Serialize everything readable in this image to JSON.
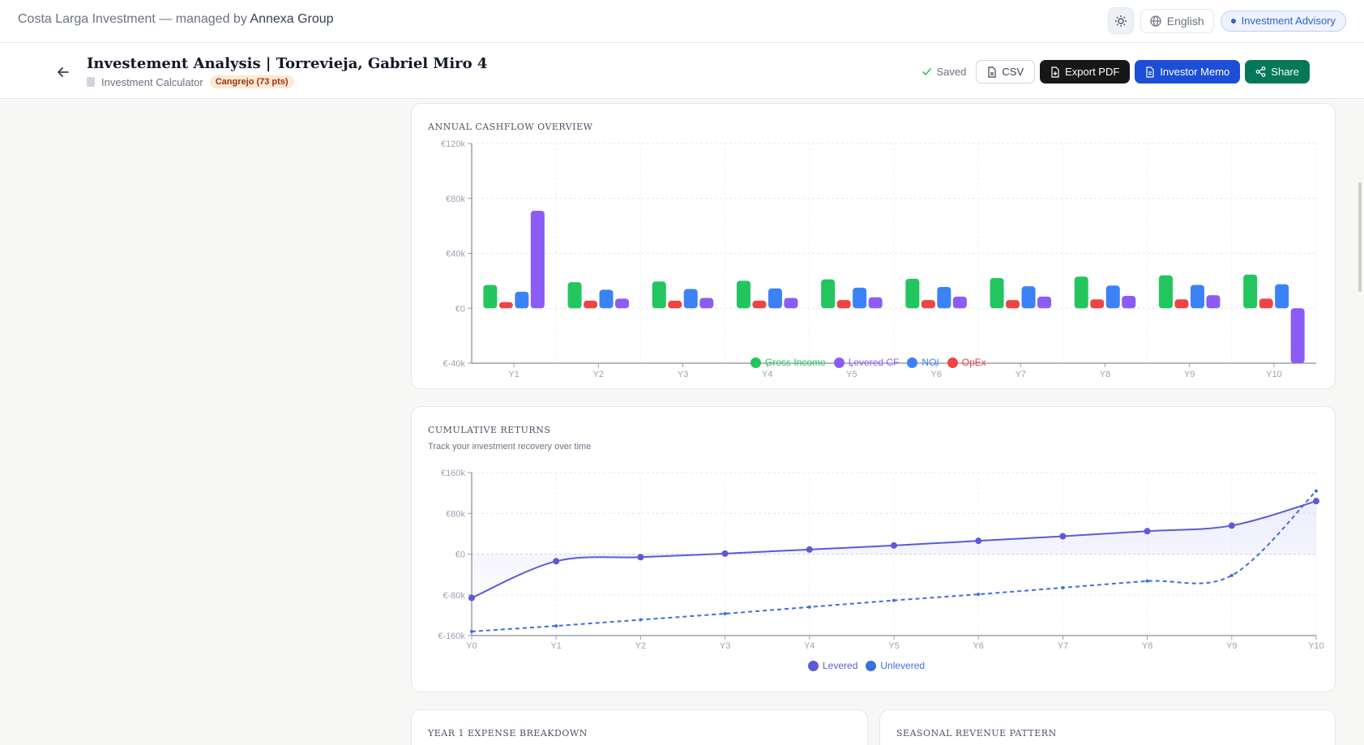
{
  "topbar": {
    "brand_prefix": "Costa Larga Investment — managed by",
    "brand_strong": "Annexa Group",
    "language": "English",
    "advisory": "Investment Advisory"
  },
  "header": {
    "title": "Investement Analysis | Torrevieja, Gabriel Miro 4",
    "subtitle": "Investment Calculator",
    "badge": "Cangrejo (73 pts)",
    "saved": "Saved",
    "csv": "CSV",
    "export_pdf": "Export PDF",
    "investor_memo": "Investor Memo",
    "share": "Share"
  },
  "cards": {
    "cashflow_title": "ANNUAL CASHFLOW OVERVIEW",
    "cumulative_title": "CUMULATIVE RETURNS",
    "cumulative_subtitle": "Track your investment recovery over time",
    "expense_title": "YEAR 1 EXPENSE BREAKDOWN",
    "seasonal_title": "SEASONAL REVENUE PATTERN"
  },
  "colors": {
    "gross": "#22c55e",
    "levered": "#8b5cf6",
    "noi": "#3b82f6",
    "opex": "#ef4444",
    "line_levered": "#5b5bd6",
    "line_unlevered": "#3b6fe0"
  },
  "chart_data": [
    {
      "type": "bar",
      "title": "ANNUAL CASHFLOW OVERVIEW",
      "categories": [
        "Y1",
        "Y2",
        "Y3",
        "Y4",
        "Y5",
        "Y6",
        "Y7",
        "Y8",
        "Y9",
        "Y10"
      ],
      "ylim": [
        -40000,
        120000
      ],
      "yticks": [
        -40000,
        0,
        40000,
        80000,
        120000
      ],
      "ytick_labels": [
        "€-40k",
        "€0",
        "€40k",
        "€80k",
        "€120k"
      ],
      "legend_position": "bottom",
      "series": [
        {
          "name": "Gross Income",
          "color_key": "gross",
          "values": [
            17000,
            19000,
            19500,
            20000,
            21000,
            21500,
            22000,
            23000,
            24000,
            24500
          ]
        },
        {
          "name": "OpEx",
          "color_key": "opex",
          "values": [
            4500,
            5500,
            5500,
            5500,
            6000,
            6000,
            6000,
            6500,
            6500,
            7000
          ]
        },
        {
          "name": "NOI",
          "color_key": "noi",
          "values": [
            12000,
            13500,
            14000,
            14500,
            15000,
            15500,
            16000,
            16500,
            17000,
            17500
          ]
        },
        {
          "name": "Levered CF",
          "color_key": "levered",
          "values": [
            71000,
            7000,
            7500,
            7500,
            8000,
            8500,
            8500,
            9000,
            9500,
            -40000
          ]
        }
      ],
      "legend_order": [
        "Gross Income",
        "Levered CF",
        "NOI",
        "OpEx"
      ]
    },
    {
      "type": "line",
      "title": "CUMULATIVE RETURNS",
      "x": [
        "Y0",
        "Y1",
        "Y2",
        "Y3",
        "Y4",
        "Y5",
        "Y6",
        "Y7",
        "Y8",
        "Y9",
        "Y10"
      ],
      "ylim": [
        -160000,
        160000
      ],
      "yticks": [
        -160000,
        -80000,
        0,
        80000,
        160000
      ],
      "ytick_labels": [
        "€-160k",
        "€-80k",
        "€0",
        "€80k",
        "€160k"
      ],
      "legend_position": "bottom",
      "series": [
        {
          "name": "Levered",
          "color_key": "line_levered",
          "style": "solid",
          "values": [
            -86000,
            -14000,
            -6000,
            1000,
            9000,
            17000,
            26000,
            35000,
            45000,
            56000,
            104000
          ]
        },
        {
          "name": "Unlevered",
          "color_key": "line_unlevered",
          "style": "dashed",
          "values": [
            -152000,
            -141000,
            -129000,
            -117000,
            -104000,
            -91000,
            -79000,
            -66000,
            -53000,
            -42000,
            124000
          ]
        }
      ]
    }
  ]
}
